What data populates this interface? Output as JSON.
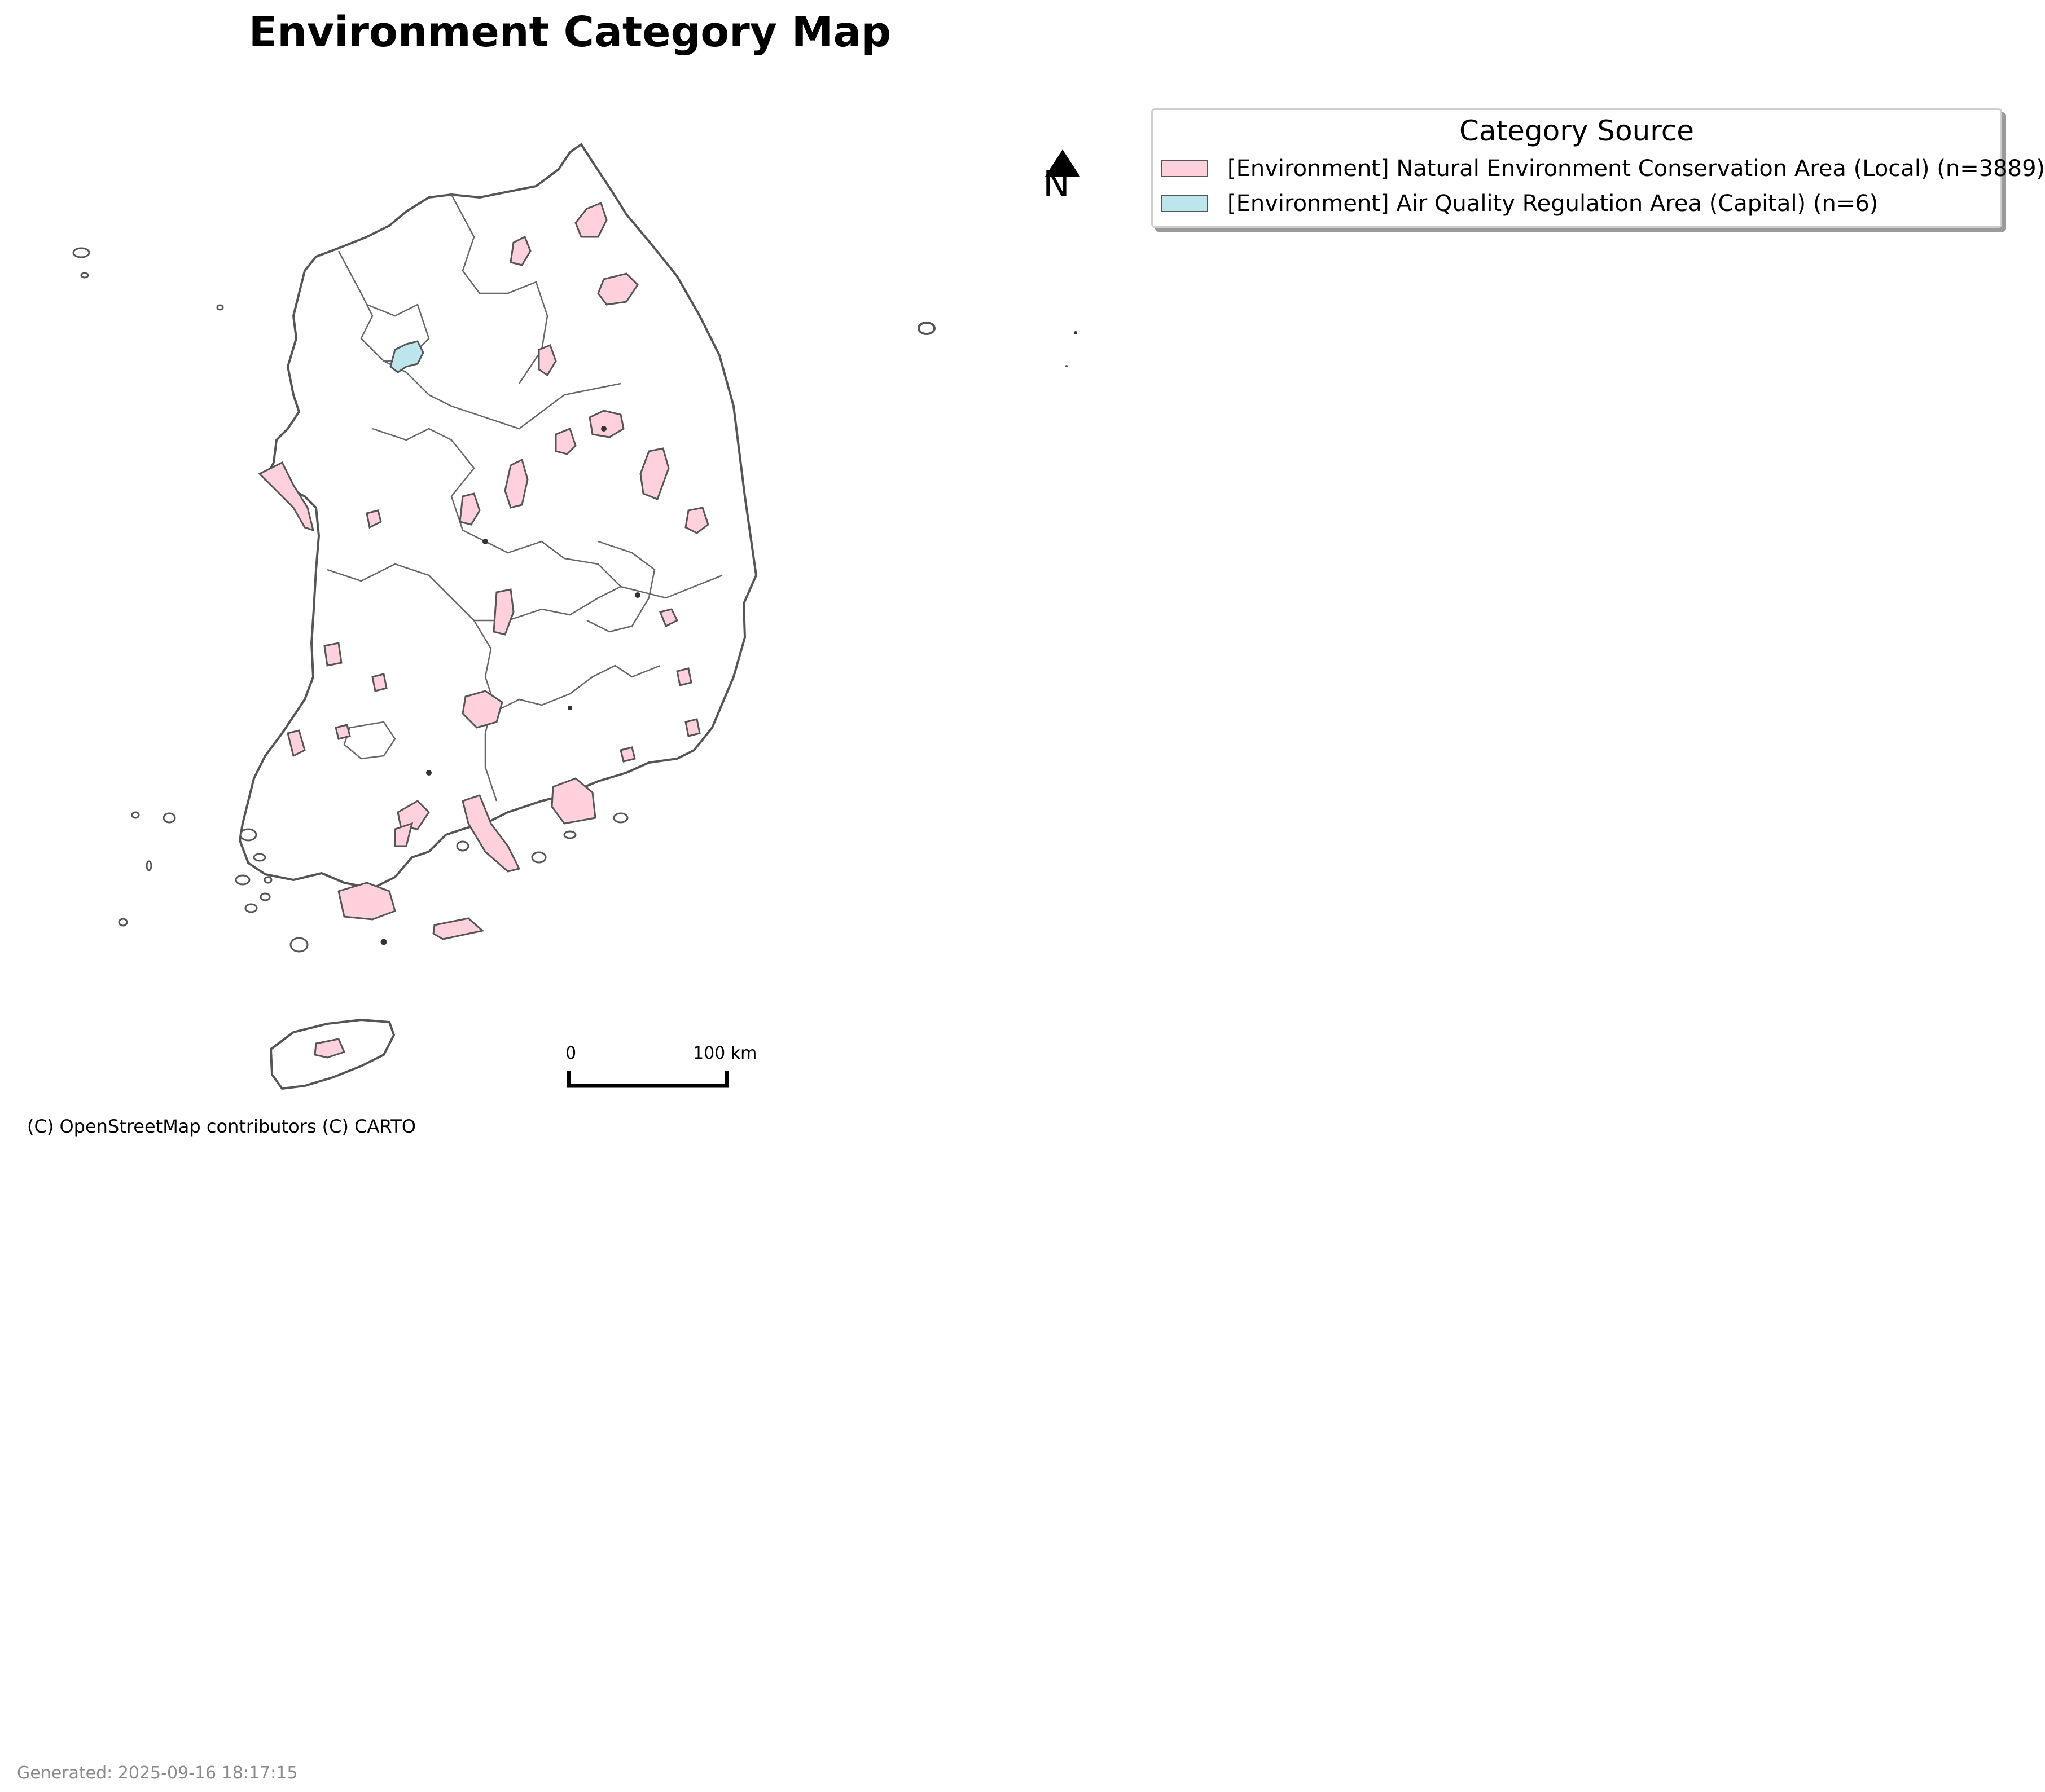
{
  "title": "Environment Category Map",
  "legend": {
    "title": "Category Source",
    "items": [
      {
        "label": "[Environment] Natural Environment Conservation Area (Local) (n=3889)",
        "color": "#ffd1dc"
      },
      {
        "label": "[Environment] Air Quality Regulation Area (Capital) (n=6)",
        "color": "#bde5ec"
      }
    ]
  },
  "north_arrow": {
    "label": "N"
  },
  "scale_bar": {
    "start_label": "0",
    "end_label": "100 km"
  },
  "attribution": "(C) OpenStreetMap contributors (C) CARTO",
  "footer": "Generated: 2025-09-16 18:17:15",
  "colors": {
    "conservation_fill": "#ffd1dc",
    "air_quality_fill": "#bde5ec",
    "boundary": "#555555"
  }
}
